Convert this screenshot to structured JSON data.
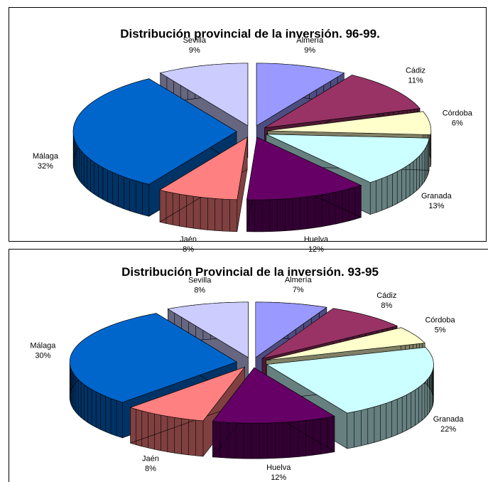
{
  "chart_data": [
    {
      "type": "pie3d",
      "title": "Distribución provincial de la inversión. 96-99.",
      "categories": [
        "Almería",
        "Cádiz",
        "Córdoba",
        "Granada",
        "Huelva",
        "Jaén",
        "Málaga",
        "Sevilla"
      ],
      "values": [
        9,
        11,
        6,
        13,
        12,
        8,
        32,
        9
      ],
      "value_labels": [
        "9%",
        "11%",
        "6%",
        "13%",
        "12%",
        "8%",
        "32%",
        "9%"
      ],
      "colors": [
        "#9999ff",
        "#993366",
        "#ffffcc",
        "#ccffff",
        "#660066",
        "#ff8080",
        "#0066cc",
        "#ccccff"
      ]
    },
    {
      "type": "pie3d",
      "title": "Distribución Provincial de la inversión. 93-95",
      "categories": [
        "Almería",
        "Cádiz",
        "Córdoba",
        "Granada",
        "Huelva",
        "Jaén",
        "Málaga",
        "Sevilla"
      ],
      "values": [
        7,
        8,
        5,
        22,
        12,
        8,
        30,
        8
      ],
      "value_labels": [
        "7%",
        "8%",
        "5%",
        "22%",
        "12%",
        "8%",
        "30%",
        "8%"
      ],
      "colors": [
        "#9999ff",
        "#993366",
        "#ffffcc",
        "#ccffff",
        "#660066",
        "#ff8080",
        "#0066cc",
        "#ccccff"
      ]
    }
  ]
}
